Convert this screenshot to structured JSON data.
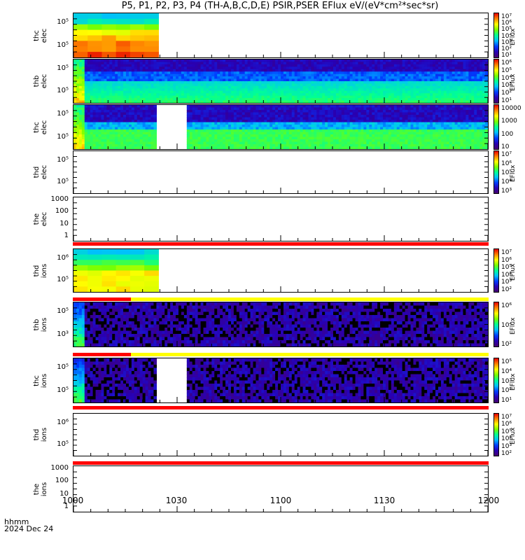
{
  "title": "P5, P1, P2, P3, P4 (TH-A,B,C,D,E) PSIR,PSER EFlux eV/(eV*cm²*sec*sr)",
  "footer": {
    "line1": "hhmm",
    "line2": "2024 Dec 24"
  },
  "x_ticks": [
    "1000",
    "1030",
    "1100",
    "1130",
    "1200"
  ],
  "colors": {
    "red_bar": "#ff0000",
    "yellow_bar": "#ffff00",
    "axis": "#000000"
  },
  "chart_data": {
    "type": "heatmap",
    "x_range": [
      "10:00",
      "12:00"
    ],
    "panels": [
      {
        "label": [
          "thc",
          "elec"
        ],
        "yticks": [
          "10⁵",
          "10⁵"
        ],
        "cbar_ticks": [
          "10⁷",
          "10⁶",
          "10⁵",
          "10⁴",
          "10³",
          "10²",
          "10¹"
        ],
        "cbar_label": "EFlux",
        "data_end": "10:25"
      },
      {
        "label": [
          "thb",
          "elec"
        ],
        "yticks": [
          "10⁵",
          "10⁵"
        ],
        "cbar_ticks": [
          "10⁶",
          "10⁵",
          "10⁴",
          "10³",
          "10²",
          "10¹"
        ],
        "cbar_label": "EFlux",
        "data_end": "12:00"
      },
      {
        "label": [
          "thc",
          "elec"
        ],
        "yticks": [
          "10⁵",
          "10⁵"
        ],
        "cbar_ticks": [
          "10000",
          "1000",
          "100",
          "10"
        ],
        "cbar_label": "",
        "gap": [
          "10:23",
          "10:32"
        ]
      },
      {
        "label": [
          "thd",
          "elec"
        ],
        "yticks": [
          "10⁵",
          "10⁵"
        ],
        "cbar_ticks": [
          "10⁷",
          "10⁶",
          "10⁵",
          "10⁴",
          "10³"
        ],
        "cbar_label": "EFlux"
      },
      {
        "label": [
          "the",
          "elec"
        ],
        "yticks": [
          "1000",
          "100",
          "10",
          "1"
        ]
      },
      {
        "label": [
          "thd",
          "ions"
        ],
        "yticks": [
          "10⁶",
          "10⁵"
        ],
        "cbar_ticks": [
          "10⁷",
          "10⁶",
          "10⁵",
          "10⁴",
          "10³",
          "10²"
        ],
        "cbar_label": "EFlux",
        "data_end": "10:25"
      },
      {
        "label": [
          "thb",
          "ions"
        ],
        "yticks": [
          "10⁵",
          "10³"
        ],
        "cbar_ticks": [
          "10⁶",
          "10⁴",
          "10²"
        ],
        "cbar_label": "EFlux"
      },
      {
        "label": [
          "thc",
          "ions"
        ],
        "yticks": [
          "10⁵",
          "10⁵"
        ],
        "cbar_ticks": [
          "10⁵",
          "10⁴",
          "10³",
          "10²",
          "10¹"
        ],
        "cbar_label": "EFlux",
        "gap": [
          "10:23",
          "10:32"
        ]
      },
      {
        "label": [
          "thd",
          "ions"
        ],
        "yticks": [
          "10⁶",
          "10⁵"
        ],
        "cbar_ticks": [
          "10⁷",
          "10⁶",
          "10⁵",
          "10⁴",
          "10³",
          "10²"
        ],
        "cbar_label": "EFlux"
      },
      {
        "label": [
          "the",
          "ions"
        ],
        "yticks": [
          "1000",
          "100",
          "10",
          "1"
        ]
      }
    ]
  }
}
